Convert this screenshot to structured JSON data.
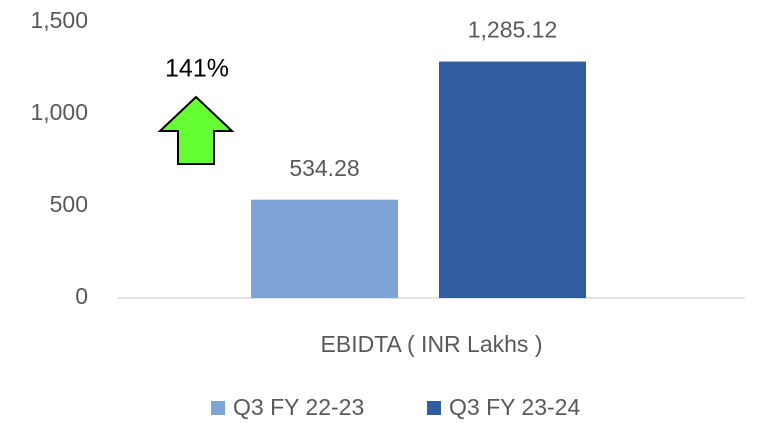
{
  "chart_data": {
    "type": "bar",
    "categories": [
      "EBIDTA ( INR Lakhs )"
    ],
    "series": [
      {
        "name": "Q3 FY 22-23",
        "color": "#7da3d7",
        "values": [
          534.28
        ]
      },
      {
        "name": "Q3 FY 23-24",
        "color": "#315c9f",
        "values": [
          1285.12
        ],
        "value_labels": [
          "1,285.12"
        ]
      }
    ],
    "ylim": [
      0,
      1500
    ],
    "yticks": [
      0,
      500,
      {
        "value": 1000,
        "label": "1,000"
      },
      {
        "value": 1500,
        "label": "1,500"
      }
    ],
    "grid": false,
    "legend": "bottom",
    "annotation": "141%"
  }
}
